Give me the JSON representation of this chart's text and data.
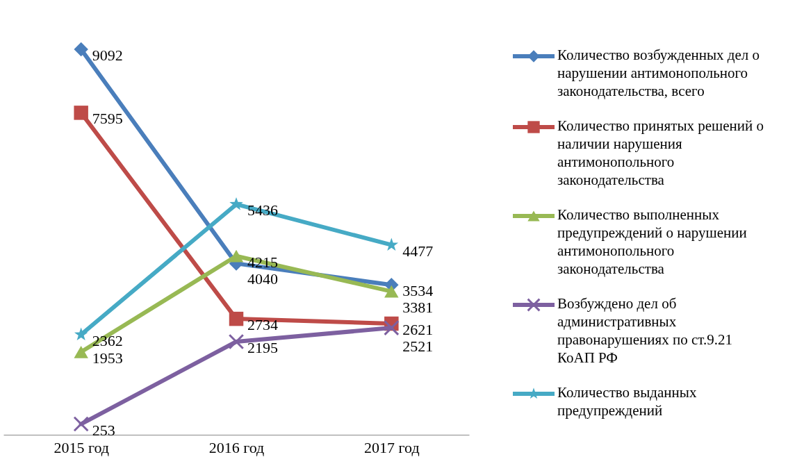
{
  "chart_data": {
    "type": "line",
    "categories": [
      "2015 год",
      "2016 год",
      "2017 год"
    ],
    "series": [
      {
        "name": "Количество возбужденных дел о нарушении антимонопольного законодательства, всего",
        "color": "#4a7ebb",
        "marker": "diamond",
        "values": [
          9092,
          4040,
          3534
        ]
      },
      {
        "name": "Количество принятых решений о наличии нарушения антимонопольного законодательства",
        "color": "#be4b48",
        "marker": "square",
        "values": [
          7595,
          2734,
          2621
        ]
      },
      {
        "name": "Количество выполненных предупреждений  о нарушении антимонопольного законодательства",
        "color": "#98b954",
        "marker": "triangle",
        "values": [
          1953,
          4215,
          3381
        ]
      },
      {
        "name": "Возбуждено дел об административных правонарушениях по ст.9.21 КоАП РФ",
        "color": "#7d60a0",
        "marker": "cross",
        "values": [
          253,
          2195,
          2521
        ]
      },
      {
        "name": "Количество выданных предупреждений",
        "color": "#46aac5",
        "marker": "star",
        "values": [
          2362,
          5436,
          4477
        ]
      }
    ],
    "data_labels": true,
    "legend": "right",
    "grid": false
  }
}
